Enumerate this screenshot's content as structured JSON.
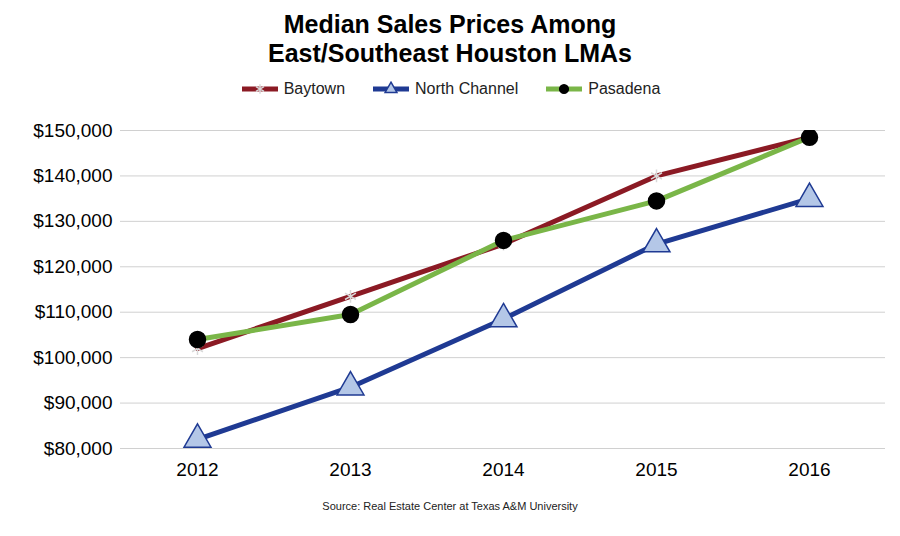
{
  "chart_data": {
    "type": "line",
    "title": "Median Sales Prices Among East/Southeast Houston LMAs",
    "caption": "Source: Real Estate Center at Texas A&M University",
    "categories": [
      "2012",
      "2013",
      "2014",
      "2015",
      "2016"
    ],
    "series": [
      {
        "name": "Baytown",
        "color": "#8b1a24",
        "marker": "asterisk",
        "values": [
          102000,
          113500,
          125000,
          140000,
          148500
        ]
      },
      {
        "name": "North Channel",
        "color": "#1f3a93",
        "marker": "triangle",
        "values": [
          82000,
          93500,
          108500,
          125000,
          135000
        ]
      },
      {
        "name": "Pasadena",
        "color": "#7ab648",
        "marker": "circle",
        "values": [
          104000,
          109500,
          125800,
          134500,
          148500
        ]
      }
    ],
    "ylim": [
      80000,
      150000
    ],
    "yticks": [
      {
        "value": 80000,
        "label": "$80,000"
      },
      {
        "value": 90000,
        "label": "$90,000"
      },
      {
        "value": 100000,
        "label": "$100,000"
      },
      {
        "value": 110000,
        "label": "$110,000"
      },
      {
        "value": 120000,
        "label": "$120,000"
      },
      {
        "value": 130000,
        "label": "$130,000"
      },
      {
        "value": 140000,
        "label": "$140,000"
      },
      {
        "value": 150000,
        "label": "$150,000"
      }
    ],
    "grid": true,
    "legend": "top"
  }
}
